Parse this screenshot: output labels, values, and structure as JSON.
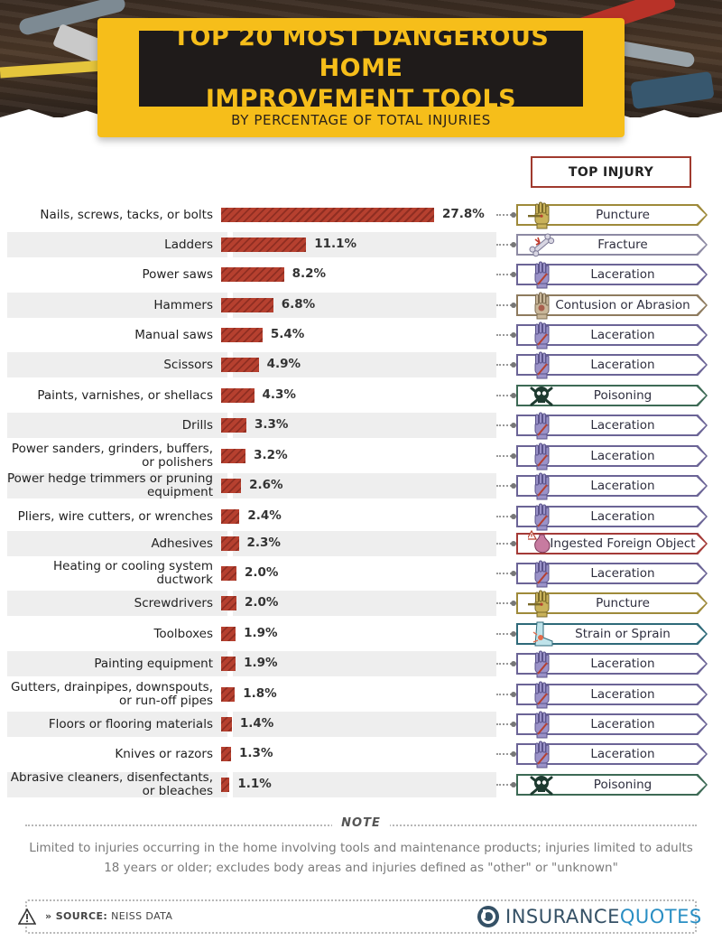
{
  "header": {
    "title_line1": "TOP 20 MOST DANGEROUS HOME",
    "title_line2": "IMPROVEMENT TOOLS",
    "subtitle": "BY PERCENTAGE OF TOTAL INJURIES"
  },
  "top_injury_label": "TOP INJURY",
  "colors": {
    "bar": "#b6402f",
    "banner": "#f6be1a",
    "title_bg": "#1f1b1a",
    "puncture": "#9e8a3a",
    "laceration": "#6b6496",
    "poisoning": "#3d6a55"
  },
  "chart_data": {
    "type": "bar",
    "orientation": "horizontal",
    "title": "TOP 20 MOST DANGEROUS HOME IMPROVEMENT TOOLS",
    "subtitle": "BY PERCENTAGE OF TOTAL INJURIES",
    "xlabel": "",
    "ylabel": "",
    "xlim": [
      0,
      27.8
    ],
    "grid": false,
    "categories": [
      "Nails, screws, tacks, or bolts",
      "Ladders",
      "Power saws",
      "Hammers",
      "Manual saws",
      "Scissors",
      "Paints, varnishes, or shellacs",
      "Drills",
      "Power sanders, grinders, buffers, or polishers",
      "Power hedge trimmers or pruning equipment",
      "Pliers, wire cutters, or wrenches",
      "Adhesives",
      "Heating or cooling system ductwork",
      "Screwdrivers",
      "Toolboxes",
      "Painting equipment",
      "Gutters, drainpipes, downspouts, or run-off pipes",
      "Floors or flooring materials",
      "Knives or razors",
      "Abrasive cleaners, disenfectants, or bleaches"
    ],
    "values": [
      27.8,
      11.1,
      8.2,
      6.8,
      5.4,
      4.9,
      4.3,
      3.3,
      3.2,
      2.6,
      2.4,
      2.3,
      2.0,
      2.0,
      1.9,
      1.9,
      1.8,
      1.4,
      1.3,
      1.1
    ],
    "value_labels": [
      "27.8%",
      "11.1%",
      "8.2%",
      "6.8%",
      "5.4%",
      "4.9%",
      "4.3%",
      "3.3%",
      "3.2%",
      "2.6%",
      "2.4%",
      "2.3%",
      "2.0%",
      "2.0%",
      "1.9%",
      "1.9%",
      "1.8%",
      "1.4%",
      "1.3%",
      "1.1%"
    ],
    "top_injury": [
      "Puncture",
      "Fracture",
      "Laceration",
      "Contusion or Abrasion",
      "Laceration",
      "Laceration",
      "Poisoning",
      "Laceration",
      "Laceration",
      "Laceration",
      "Laceration",
      "Ingested Foreign Object",
      "Laceration",
      "Puncture",
      "Strain or Sprain",
      "Laceration",
      "Laceration",
      "Laceration",
      "Laceration",
      "Poisoning"
    ],
    "top_injury_icons": [
      "hand-puncture-icon",
      "broken-bone-icon",
      "hand-cut-icon",
      "hand-bruise-icon",
      "hand-cut-icon",
      "hand-cut-icon",
      "skull-crossbones-icon",
      "hand-cut-icon",
      "hand-cut-icon",
      "hand-cut-icon",
      "hand-cut-icon",
      "stomach-warning-icon",
      "hand-cut-icon",
      "hand-puncture-icon",
      "foot-sprain-icon",
      "hand-cut-icon",
      "hand-cut-icon",
      "hand-cut-icon",
      "hand-cut-icon",
      "skull-crossbones-icon"
    ]
  },
  "note": {
    "heading": "NOTE",
    "text": "Limited to injuries occurring in the home involving tools and maintenance products; injuries limited to adults 18 years or older; excludes body areas and injuries defined as \"other\" or \"unknown\""
  },
  "footer": {
    "source_prefix": "» SOURCE:",
    "source_value": "NEISS DATA",
    "logo_part1": "INSURANCE",
    "logo_part2": "QUOTES"
  }
}
